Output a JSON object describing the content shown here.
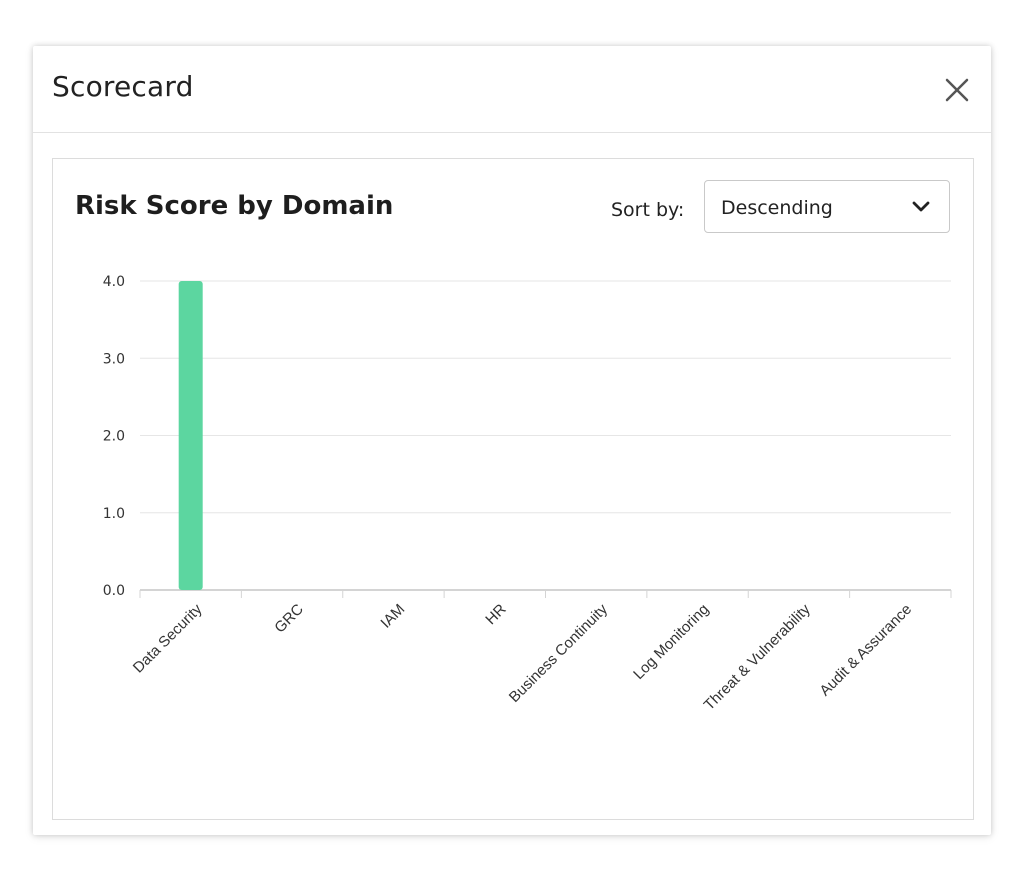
{
  "dialog": {
    "title": "Scorecard"
  },
  "sort": {
    "label": "Sort by:",
    "value": "Descending"
  },
  "colors": {
    "bar": "#5cd6a0",
    "grid": "#e6e6e6",
    "axis": "#d4d4d4"
  },
  "icons": {
    "close": "close-icon",
    "dropdown": "chevron-down-icon"
  },
  "chart_data": {
    "type": "bar",
    "title": "Risk Score by Domain",
    "xlabel": "",
    "ylabel": "",
    "categories": [
      "Data Security",
      "GRC",
      "IAM",
      "HR",
      "Business Continuity",
      "Log Monitoring",
      "Threat & Vulnerability",
      "Audit & Assurance"
    ],
    "values": [
      4.0,
      0,
      0,
      0,
      0,
      0,
      0,
      0
    ],
    "ylim": [
      0,
      4
    ],
    "yticks": [
      "0.0",
      "1.0",
      "2.0",
      "3.0",
      "4.0"
    ],
    "grid": true,
    "legend": "none"
  }
}
